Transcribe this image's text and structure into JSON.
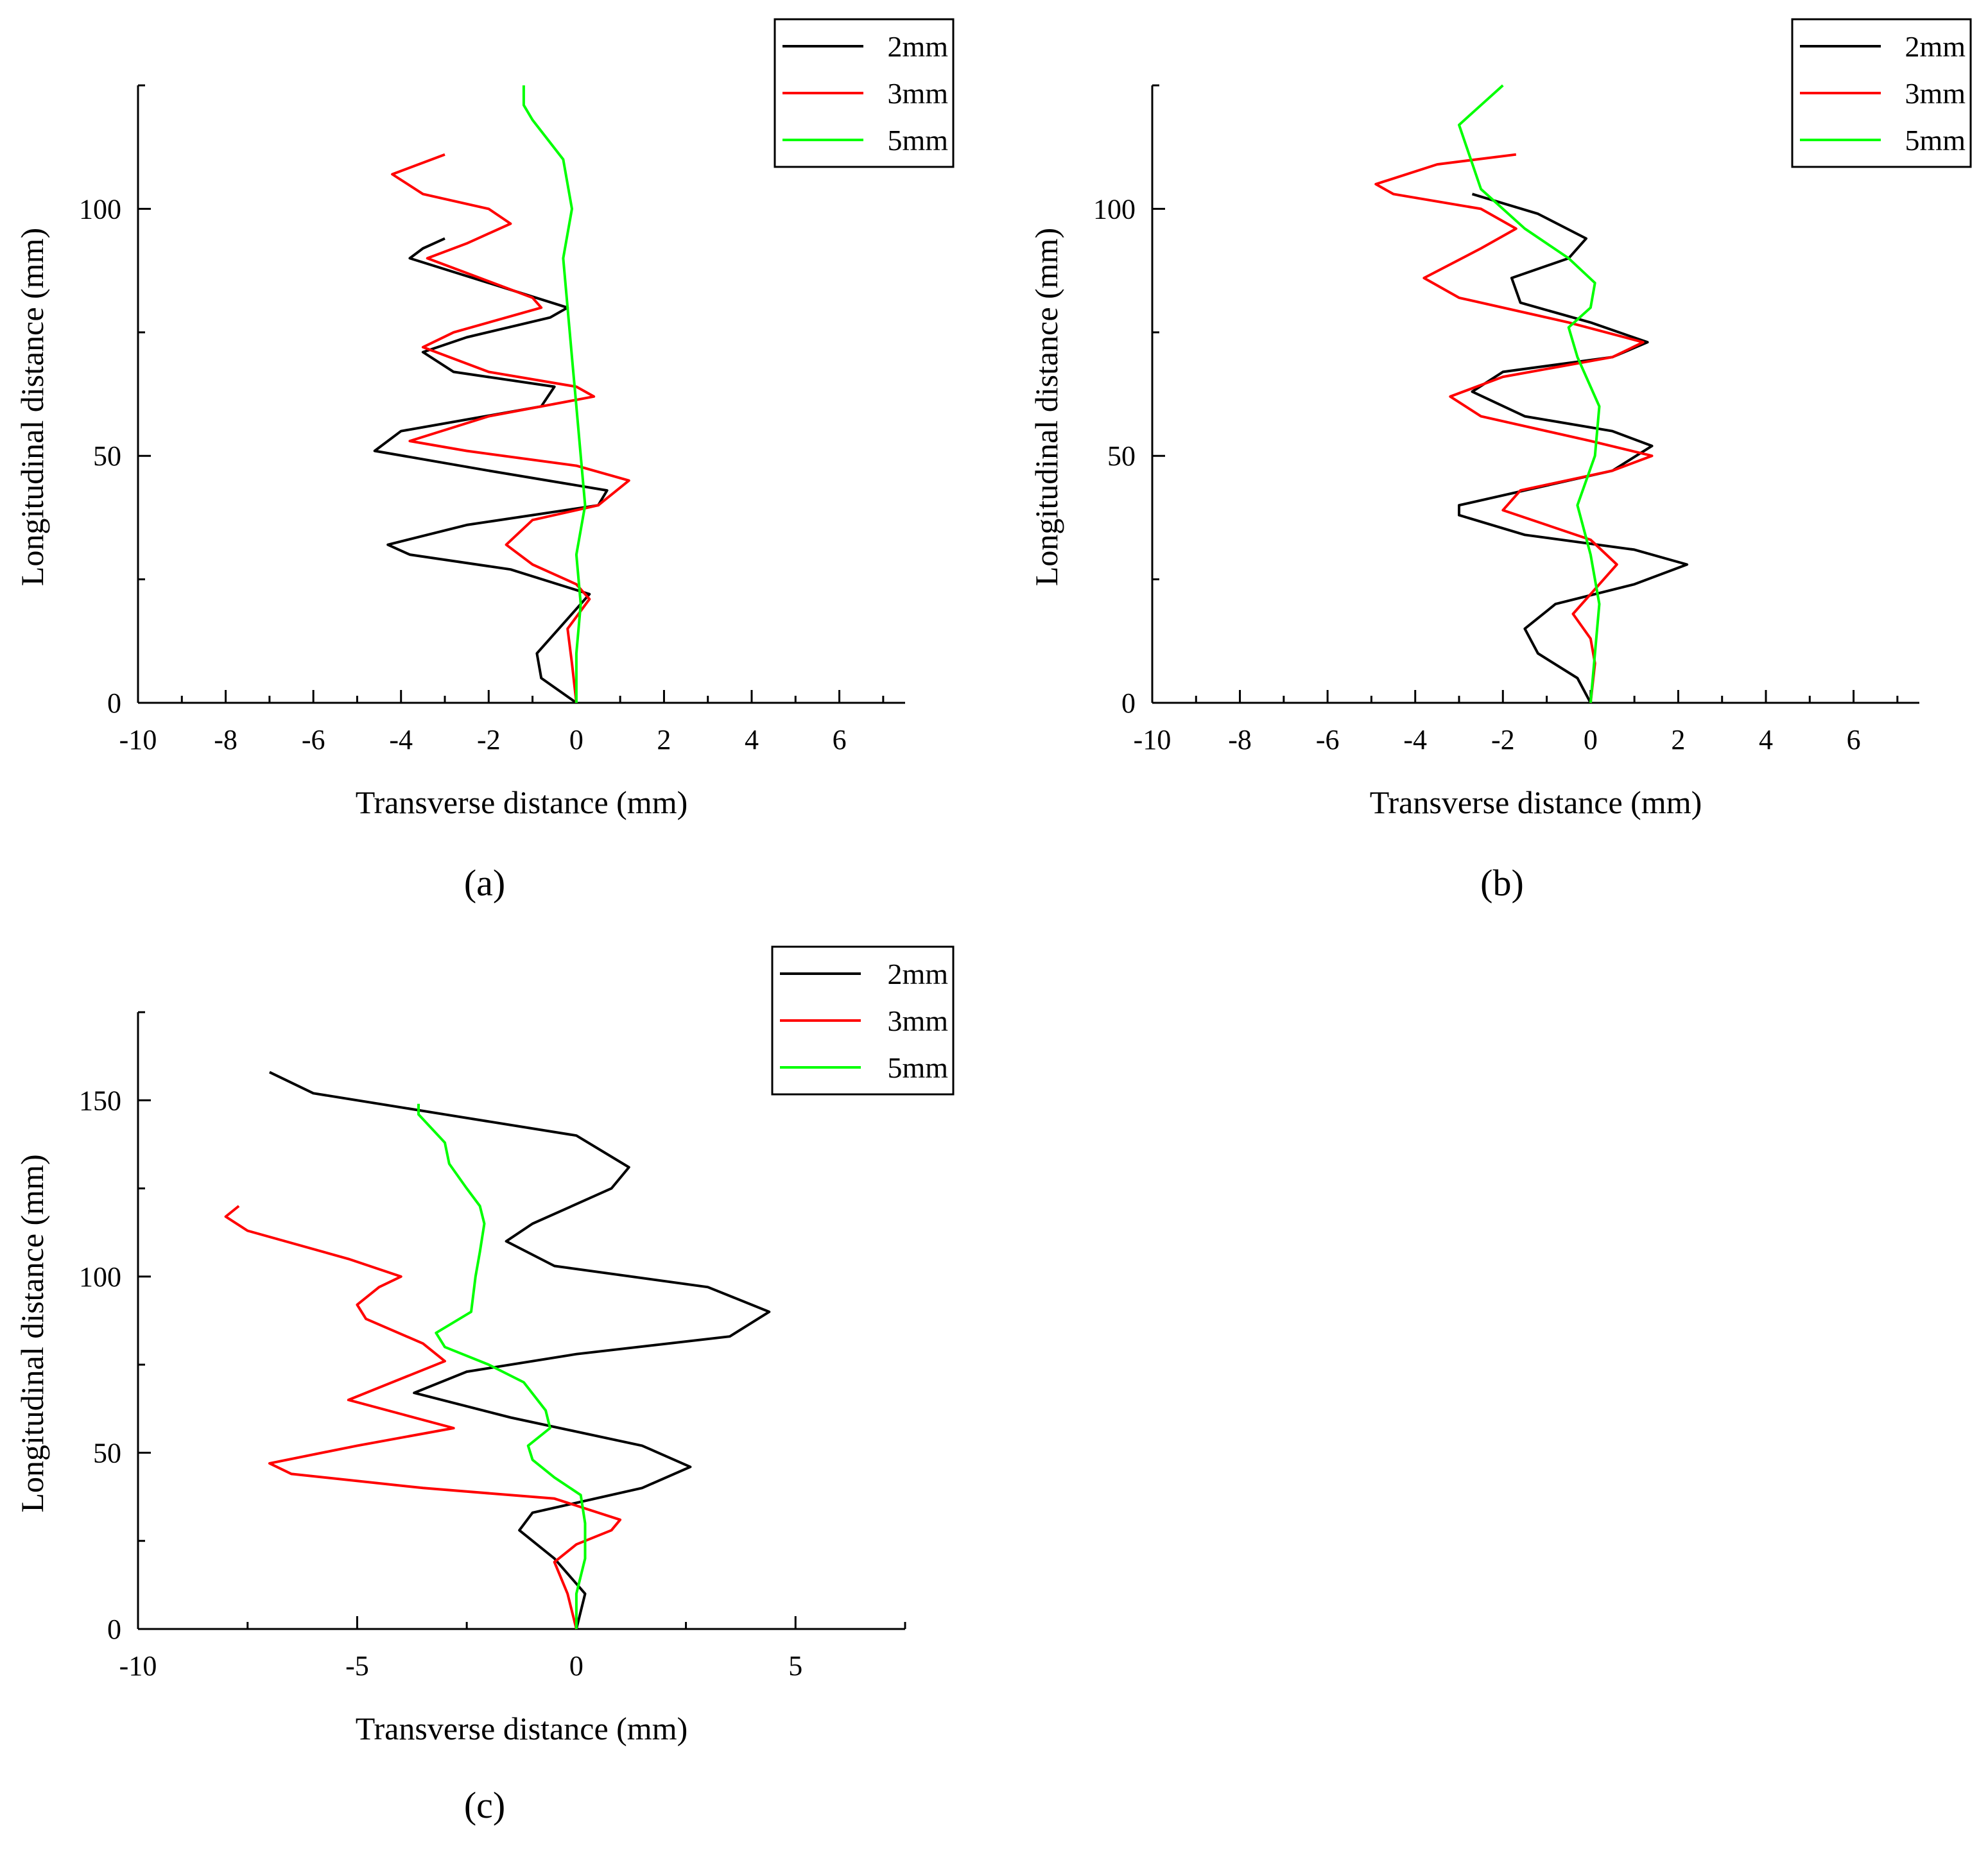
{
  "figure": {
    "panel_labels": [
      "(a)",
      "(b)",
      "(c)"
    ]
  },
  "chart_data": [
    {
      "type": "line",
      "panel": "(a)",
      "xlabel": "Transverse distance (mm)",
      "ylabel": "Longitudinal distance (mm)",
      "xlim": [
        -10,
        7.5
      ],
      "ylim": [
        0,
        125
      ],
      "xticks": [
        "-10",
        "-8",
        "-6",
        "-4",
        "-2",
        "0",
        "2",
        "4",
        "6"
      ],
      "yticks": [
        "0",
        "50",
        "100"
      ],
      "legend_position": "top-right",
      "series": [
        {
          "name": "2mm",
          "color": "#000000",
          "points": [
            [
              0,
              0
            ],
            [
              -0.8,
              5
            ],
            [
              -0.9,
              10
            ],
            [
              -0.2,
              17
            ],
            [
              0.3,
              22
            ],
            [
              -1.5,
              27
            ],
            [
              -3.8,
              30
            ],
            [
              -4.3,
              32
            ],
            [
              -2.5,
              36
            ],
            [
              0.5,
              40
            ],
            [
              0.7,
              43
            ],
            [
              -2,
              47
            ],
            [
              -4.6,
              51
            ],
            [
              -4,
              55
            ],
            [
              -0.8,
              60
            ],
            [
              -0.5,
              64
            ],
            [
              -2.8,
              67
            ],
            [
              -3.5,
              71
            ],
            [
              -2.5,
              74
            ],
            [
              -0.6,
              78
            ],
            [
              -0.2,
              80
            ],
            [
              -2,
              85
            ],
            [
              -3.8,
              90
            ],
            [
              -3.5,
              92
            ],
            [
              -3,
              94
            ]
          ]
        },
        {
          "name": "3mm",
          "color": "#ff0000",
          "points": [
            [
              0,
              0
            ],
            [
              -0.1,
              8
            ],
            [
              -0.2,
              15
            ],
            [
              0.3,
              21
            ],
            [
              0,
              24
            ],
            [
              -1,
              28
            ],
            [
              -1.6,
              32
            ],
            [
              -1,
              37
            ],
            [
              0.5,
              40
            ],
            [
              1.2,
              45
            ],
            [
              0,
              48
            ],
            [
              -2.5,
              51
            ],
            [
              -3.8,
              53
            ],
            [
              -2,
              58
            ],
            [
              0.4,
              62
            ],
            [
              0,
              64
            ],
            [
              -2,
              67
            ],
            [
              -3.5,
              72
            ],
            [
              -2.8,
              75
            ],
            [
              -0.8,
              80
            ],
            [
              -1,
              82
            ],
            [
              -2.5,
              87
            ],
            [
              -3.4,
              90
            ],
            [
              -2.5,
              93
            ],
            [
              -1.5,
              97
            ],
            [
              -2,
              100
            ],
            [
              -3.5,
              103
            ],
            [
              -4.2,
              107
            ],
            [
              -3,
              111
            ]
          ]
        },
        {
          "name": "5mm",
          "color": "#00ff00",
          "points": [
            [
              0,
              0
            ],
            [
              0,
              10
            ],
            [
              0.1,
              20
            ],
            [
              0,
              30
            ],
            [
              0.2,
              40
            ],
            [
              0.1,
              50
            ],
            [
              0,
              60
            ],
            [
              -0.1,
              70
            ],
            [
              -0.2,
              80
            ],
            [
              -0.3,
              90
            ],
            [
              -0.1,
              100
            ],
            [
              -0.3,
              110
            ],
            [
              -1,
              118
            ],
            [
              -1.2,
              121
            ],
            [
              -1.2,
              125
            ]
          ]
        }
      ]
    },
    {
      "type": "line",
      "panel": "(b)",
      "xlabel": "Transverse distance (mm)",
      "ylabel": "Longitudinal distance (mm)",
      "xlim": [
        -10,
        7.5
      ],
      "ylim": [
        0,
        125
      ],
      "xticks": [
        "-10",
        "-8",
        "-6",
        "-4",
        "-2",
        "0",
        "2",
        "4",
        "6"
      ],
      "yticks": [
        "0",
        "50",
        "100"
      ],
      "legend_position": "top-right",
      "series": [
        {
          "name": "2mm",
          "color": "#000000",
          "points": [
            [
              0,
              0
            ],
            [
              -0.3,
              5
            ],
            [
              -1.2,
              10
            ],
            [
              -1.5,
              15
            ],
            [
              -0.8,
              20
            ],
            [
              1,
              24
            ],
            [
              2.2,
              28
            ],
            [
              1,
              31
            ],
            [
              -1.5,
              34
            ],
            [
              -3,
              38
            ],
            [
              -3,
              40
            ],
            [
              -1.5,
              43
            ],
            [
              0.5,
              47
            ],
            [
              1.4,
              52
            ],
            [
              0.5,
              55
            ],
            [
              -1.5,
              58
            ],
            [
              -2.7,
              63
            ],
            [
              -2,
              67
            ],
            [
              0.5,
              70
            ],
            [
              1.3,
              73
            ],
            [
              0,
              77
            ],
            [
              -1.6,
              81
            ],
            [
              -1.8,
              86
            ],
            [
              -0.5,
              90
            ],
            [
              -0.1,
              94
            ],
            [
              -1.2,
              99
            ],
            [
              -2.7,
              103
            ]
          ]
        },
        {
          "name": "3mm",
          "color": "#ff0000",
          "points": [
            [
              0,
              0
            ],
            [
              0.1,
              8
            ],
            [
              0,
              13
            ],
            [
              -0.4,
              18
            ],
            [
              0,
              22
            ],
            [
              0.6,
              28
            ],
            [
              0,
              33
            ],
            [
              -1,
              36
            ],
            [
              -2,
              39
            ],
            [
              -1.6,
              43
            ],
            [
              0.5,
              47
            ],
            [
              1.4,
              50
            ],
            [
              0,
              53
            ],
            [
              -2.5,
              58
            ],
            [
              -3.2,
              62
            ],
            [
              -2,
              66
            ],
            [
              0.5,
              70
            ],
            [
              1.2,
              73
            ],
            [
              -0.5,
              77
            ],
            [
              -3,
              82
            ],
            [
              -3.8,
              86
            ],
            [
              -2.5,
              92
            ],
            [
              -1.7,
              96
            ],
            [
              -2.5,
              100
            ],
            [
              -4.5,
              103
            ],
            [
              -4.9,
              105
            ],
            [
              -3.5,
              109
            ],
            [
              -1.7,
              111
            ]
          ]
        },
        {
          "name": "5mm",
          "color": "#00ff00",
          "points": [
            [
              0,
              0
            ],
            [
              0.1,
              10
            ],
            [
              0.2,
              20
            ],
            [
              0,
              30
            ],
            [
              -0.3,
              40
            ],
            [
              0.1,
              50
            ],
            [
              0.2,
              60
            ],
            [
              -0.3,
              70
            ],
            [
              -0.5,
              76
            ],
            [
              0,
              80
            ],
            [
              0.1,
              85
            ],
            [
              -0.5,
              90
            ],
            [
              -1.5,
              96
            ],
            [
              -2.5,
              104
            ],
            [
              -3,
              117
            ],
            [
              -2.5,
              121
            ],
            [
              -2,
              125
            ]
          ]
        }
      ]
    },
    {
      "type": "line",
      "panel": "(c)",
      "xlabel": "Transverse distance (mm)",
      "ylabel": "Longitudinal distance (mm)",
      "xlim": [
        -10,
        7.5
      ],
      "ylim": [
        0,
        175
      ],
      "xticks": [
        "-10",
        "-5",
        "0",
        "5"
      ],
      "yticks": [
        "0",
        "50",
        "100",
        "150"
      ],
      "legend_position": "top-right",
      "series": [
        {
          "name": "2mm",
          "color": "#000000",
          "points": [
            [
              0,
              0
            ],
            [
              0.2,
              10
            ],
            [
              -0.5,
              20
            ],
            [
              -1.3,
              28
            ],
            [
              -1,
              33
            ],
            [
              1.5,
              40
            ],
            [
              2.6,
              46
            ],
            [
              1.5,
              52
            ],
            [
              -1.5,
              60
            ],
            [
              -3.7,
              67
            ],
            [
              -2.5,
              73
            ],
            [
              0,
              78
            ],
            [
              3.5,
              83
            ],
            [
              4.4,
              90
            ],
            [
              3,
              97
            ],
            [
              -0.5,
              103
            ],
            [
              -1.6,
              110
            ],
            [
              -1,
              115
            ],
            [
              0.8,
              125
            ],
            [
              1.2,
              131
            ],
            [
              0,
              140
            ],
            [
              -3,
              146
            ],
            [
              -6,
              152
            ],
            [
              -7,
              158
            ]
          ]
        },
        {
          "name": "3mm",
          "color": "#ff0000",
          "points": [
            [
              0,
              0
            ],
            [
              -0.2,
              10
            ],
            [
              -0.5,
              19
            ],
            [
              0,
              24
            ],
            [
              0.8,
              28
            ],
            [
              1,
              31
            ],
            [
              -0.5,
              37
            ],
            [
              -3.5,
              40
            ],
            [
              -6.5,
              44
            ],
            [
              -7,
              47
            ],
            [
              -5,
              52
            ],
            [
              -2.8,
              57
            ],
            [
              -4,
              61
            ],
            [
              -5.2,
              65
            ],
            [
              -4,
              71
            ],
            [
              -3,
              76
            ],
            [
              -3.5,
              81
            ],
            [
              -4.8,
              88
            ],
            [
              -5,
              92
            ],
            [
              -4.5,
              97
            ],
            [
              -4,
              100
            ],
            [
              -5.2,
              105
            ],
            [
              -7.5,
              113
            ],
            [
              -8,
              117
            ],
            [
              -7.7,
              120
            ]
          ]
        },
        {
          "name": "5mm",
          "color": "#00ff00",
          "points": [
            [
              0,
              0
            ],
            [
              0,
              10
            ],
            [
              0.2,
              20
            ],
            [
              0.2,
              30
            ],
            [
              0.1,
              38
            ],
            [
              -0.5,
              43
            ],
            [
              -1,
              48
            ],
            [
              -1.1,
              52
            ],
            [
              -0.6,
              57
            ],
            [
              -0.7,
              62
            ],
            [
              -1.2,
              70
            ],
            [
              -2,
              75
            ],
            [
              -3,
              80
            ],
            [
              -3.2,
              84
            ],
            [
              -2.4,
              90
            ],
            [
              -2.3,
              100
            ],
            [
              -2.2,
              107
            ],
            [
              -2.1,
              115
            ],
            [
              -2.2,
              120
            ],
            [
              -2.5,
              125
            ],
            [
              -2.9,
              132
            ],
            [
              -3,
              138
            ],
            [
              -3.6,
              146
            ],
            [
              -3.6,
              149
            ]
          ]
        }
      ]
    }
  ]
}
